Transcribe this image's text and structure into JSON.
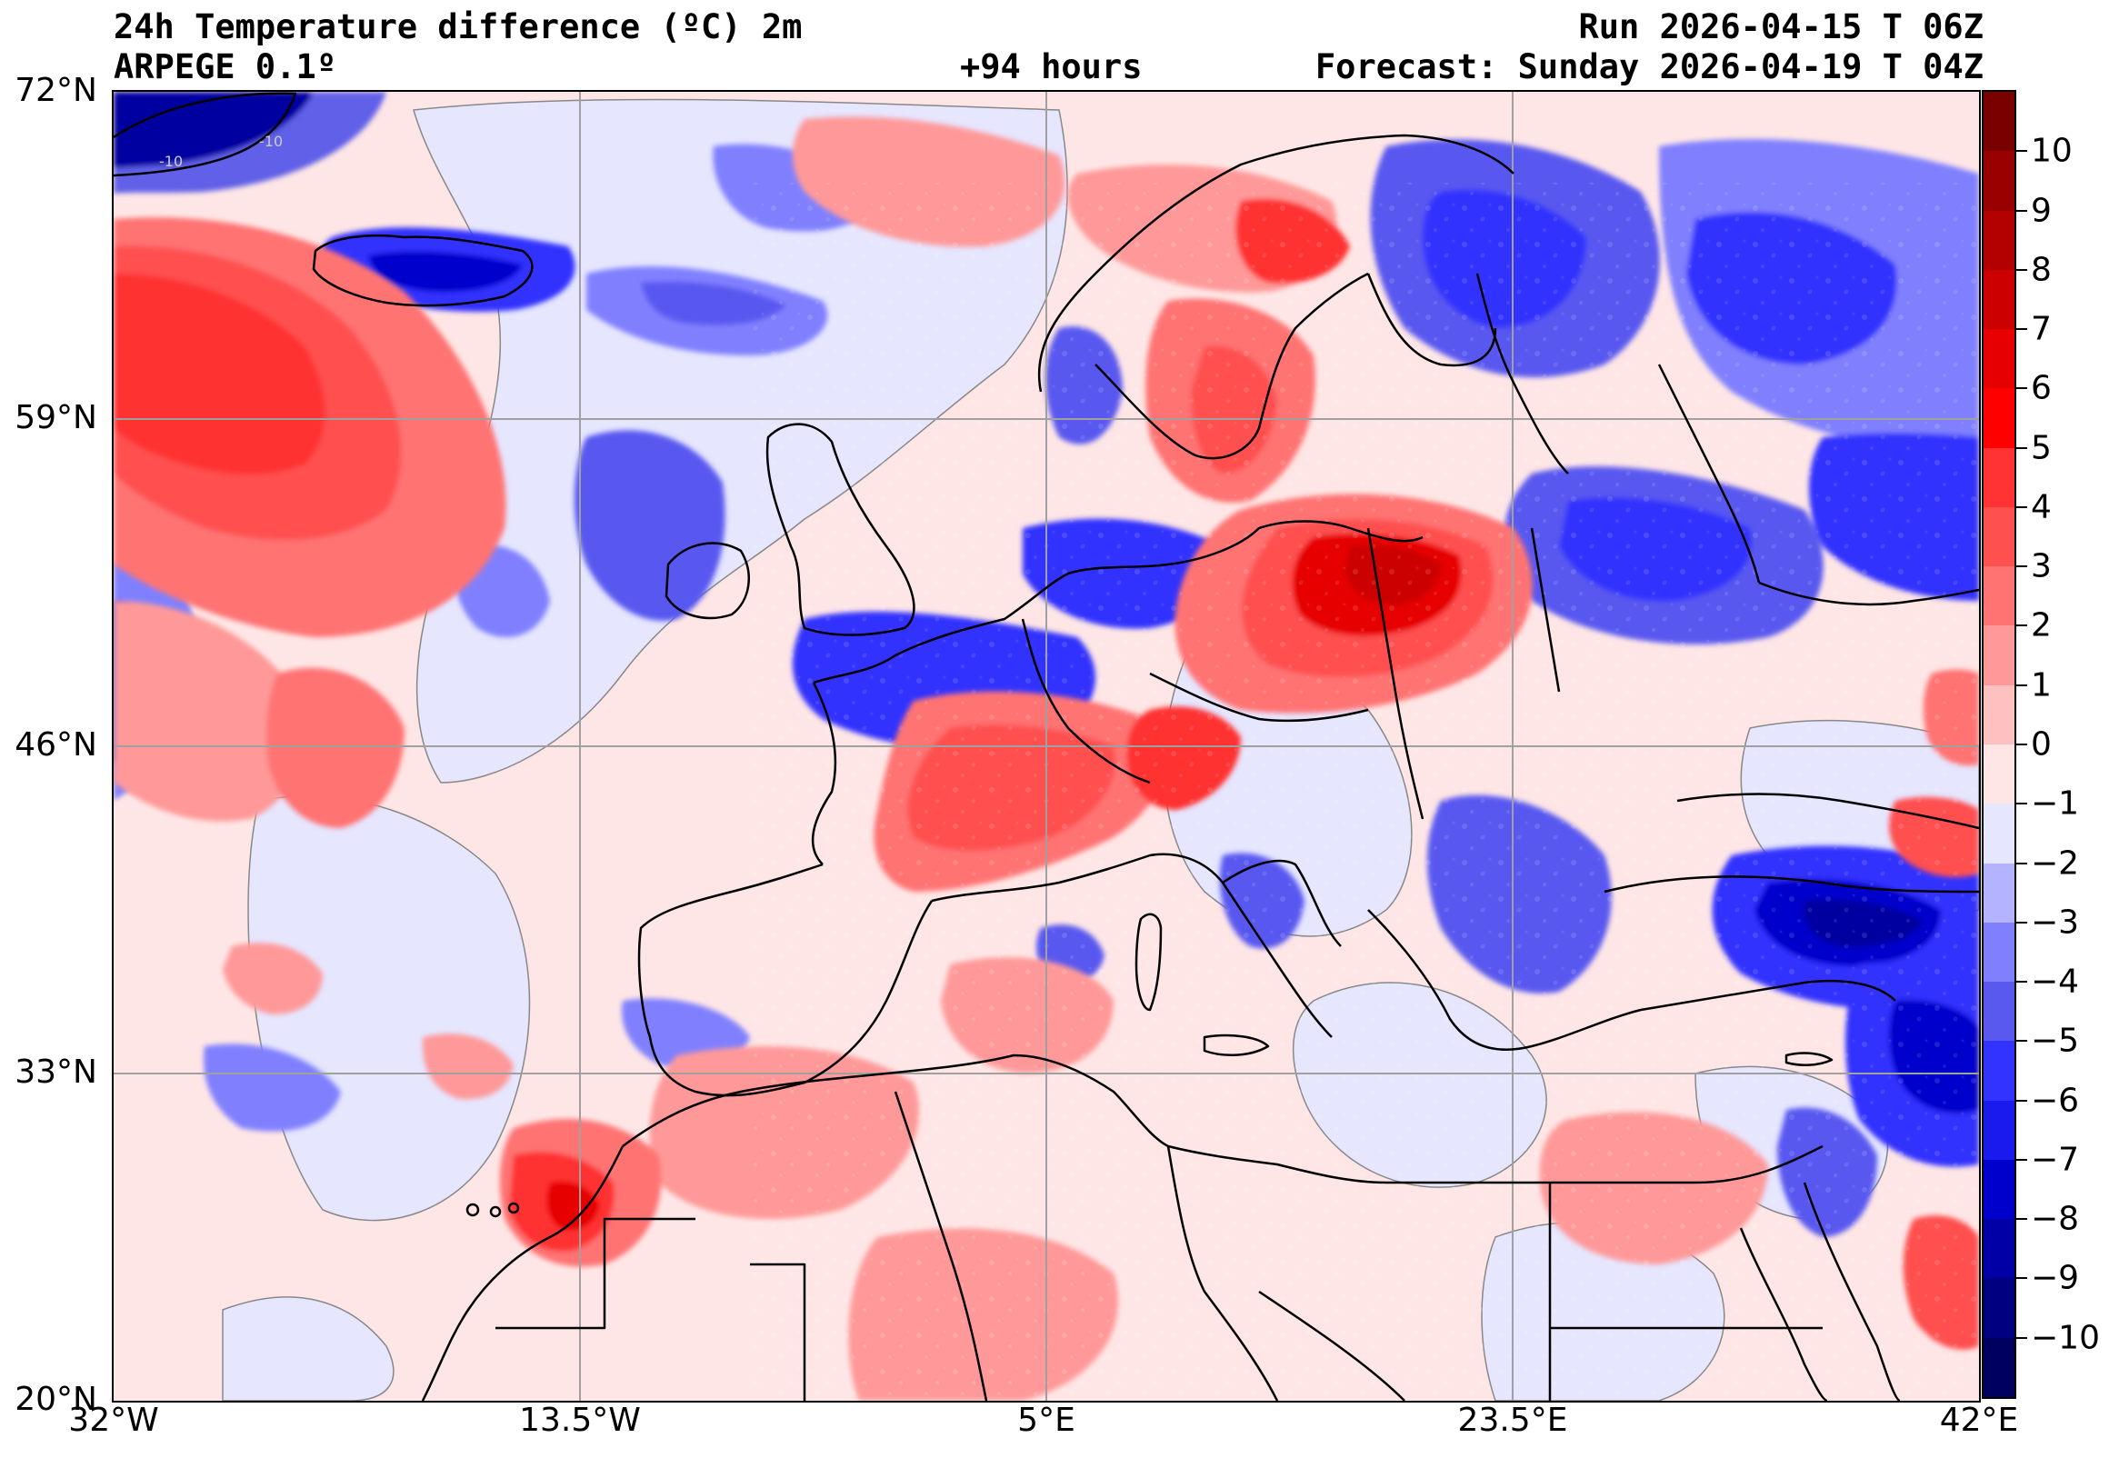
{
  "header": {
    "title": "24h Temperature difference (ºC) 2m",
    "model": "ARPEGE 0.1º",
    "lead_time": "+94 hours",
    "run": "Run 2026-04-15 T 06Z",
    "forecast": "Forecast: Sunday 2026-04-19 T 04Z"
  },
  "map": {
    "lat_labels": [
      {
        "label": "72°N",
        "value": 72
      },
      {
        "label": "59°N",
        "value": 59
      },
      {
        "label": "46°N",
        "value": 46
      },
      {
        "label": "33°N",
        "value": 33
      },
      {
        "label": "20°N",
        "value": 20
      }
    ],
    "lon_labels": [
      {
        "label": "32°W",
        "value": -32
      },
      {
        "label": "13.5°W",
        "value": -13.5
      },
      {
        "label": "5°E",
        "value": 5
      },
      {
        "label": "23.5°E",
        "value": 23.5
      },
      {
        "label": "42°E",
        "value": 42
      }
    ],
    "lat_range": [
      20,
      72
    ],
    "lon_range": [
      -32,
      42
    ],
    "contour_labels": [
      "-10",
      "-10"
    ]
  },
  "colorbar": {
    "ticks": [
      "10",
      "9",
      "8",
      "7",
      "6",
      "5",
      "4",
      "3",
      "2",
      "1",
      "0",
      "−1",
      "−2",
      "−3",
      "−4",
      "−5",
      "−6",
      "−7",
      "−8",
      "−9",
      "−10"
    ],
    "tick_values": [
      10,
      9,
      8,
      7,
      6,
      5,
      4,
      3,
      2,
      1,
      0,
      -1,
      -2,
      -3,
      -4,
      -5,
      -6,
      -7,
      -8,
      -9,
      -10
    ],
    "range": [
      -11,
      11
    ],
    "colors": [
      "#7a0000",
      "#990000",
      "#b30000",
      "#cc0000",
      "#e60000",
      "#ff0000",
      "#ff3333",
      "#ff5050",
      "#ff7373",
      "#ff9999",
      "#ffc0c0",
      "#ffe6e6",
      "#e6e6ff",
      "#b3b3ff",
      "#8080ff",
      "#5959f0",
      "#3333ff",
      "#1a1aee",
      "#0000cc",
      "#0000a6",
      "#000080",
      "#000060"
    ]
  },
  "palette": {
    "neutral_warm": "#ffe6e6",
    "neutral_cool": "#e6e6ff",
    "coastline": "#000000",
    "grid": "#a0a0a0"
  }
}
